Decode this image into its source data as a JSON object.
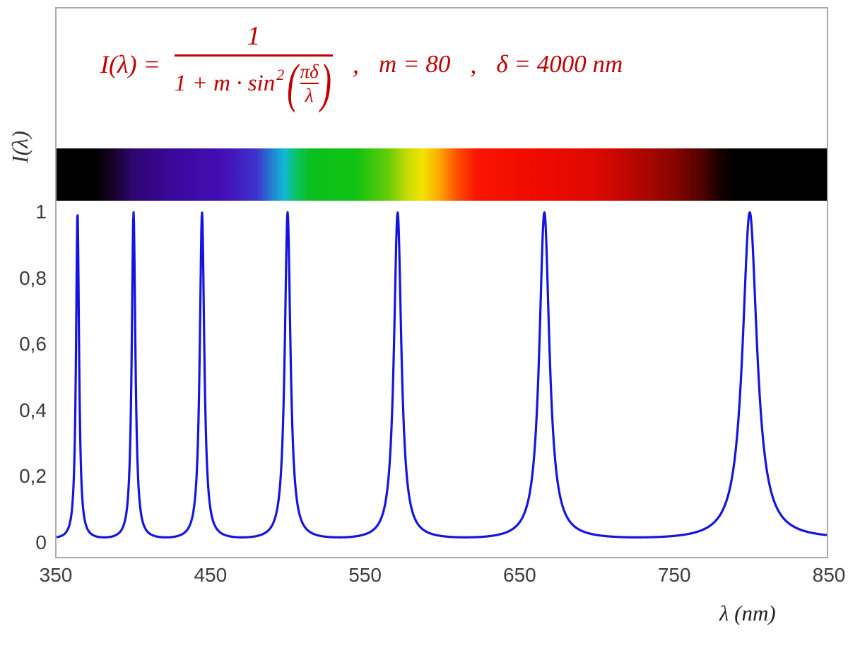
{
  "figure": {
    "y_axis_title": "I(λ)",
    "x_axis_title": "λ  (nm)"
  },
  "formula": {
    "lhs": "I(λ) =",
    "numerator": "1",
    "denominator_prefix": "1 + m · sin",
    "denominator_exponent": "2",
    "open_paren": "(",
    "inner_numerator": "πδ",
    "inner_denominator": "λ",
    "close_paren": ")",
    "separator1": ",",
    "param_m": "m = 80",
    "separator2": ",",
    "param_delta": "δ = 4000 nm",
    "color": "#c00000"
  },
  "chart_data": {
    "type": "line",
    "formula_text": "I(λ) = 1 / (1 + m·sin²(πδ/λ))",
    "parameters": {
      "m": 80,
      "delta_nm": 4000
    },
    "x_axis": {
      "label": "λ (nm)",
      "min": 350,
      "max": 850,
      "ticks": [
        350,
        450,
        550,
        650,
        750,
        850
      ]
    },
    "y_axis": {
      "label": "I(λ)",
      "min": 0,
      "max": 1,
      "tick_values": [
        0,
        0.2,
        0.4,
        0.6,
        0.8,
        1
      ],
      "tick_labels": [
        "0",
        "0,2",
        "0,4",
        "0,6",
        "0,8",
        "1"
      ]
    },
    "curve_color": "#1414e0",
    "formula_color": "#c00000",
    "peak_wavelengths_nm": [
      363.6,
      400,
      444.4,
      500,
      571.4,
      666.7,
      800
    ],
    "peak_value": 1,
    "min_value": 0.0123,
    "grid": false,
    "legend": false,
    "spectrum_bar": {
      "name": "visible-spectrum-strip",
      "gradient_stops": [
        {
          "pos": 0,
          "color": "#000000"
        },
        {
          "pos": 5,
          "color": "#000000"
        },
        {
          "pos": 7,
          "color": "#14021f"
        },
        {
          "pos": 10,
          "color": "#2e0672"
        },
        {
          "pos": 16,
          "color": "#3c08a0"
        },
        {
          "pos": 22,
          "color": "#4410b8"
        },
        {
          "pos": 26,
          "color": "#3f34cc"
        },
        {
          "pos": 28,
          "color": "#2380d2"
        },
        {
          "pos": 29.5,
          "color": "#12b7d8"
        },
        {
          "pos": 31,
          "color": "#0cc46a"
        },
        {
          "pos": 33,
          "color": "#0abf1e"
        },
        {
          "pos": 39,
          "color": "#12c312"
        },
        {
          "pos": 43,
          "color": "#63cc08"
        },
        {
          "pos": 45.5,
          "color": "#c6da02"
        },
        {
          "pos": 47.5,
          "color": "#f2e400"
        },
        {
          "pos": 49.5,
          "color": "#ffae00"
        },
        {
          "pos": 52,
          "color": "#ff5000"
        },
        {
          "pos": 54.5,
          "color": "#fa1400"
        },
        {
          "pos": 62,
          "color": "#f00a00"
        },
        {
          "pos": 70,
          "color": "#dd0900"
        },
        {
          "pos": 74,
          "color": "#c00700"
        },
        {
          "pos": 80,
          "color": "#8a0500"
        },
        {
          "pos": 84,
          "color": "#4a0200"
        },
        {
          "pos": 86,
          "color": "#1a0000"
        },
        {
          "pos": 88,
          "color": "#000000"
        },
        {
          "pos": 100,
          "color": "#000000"
        }
      ]
    }
  }
}
